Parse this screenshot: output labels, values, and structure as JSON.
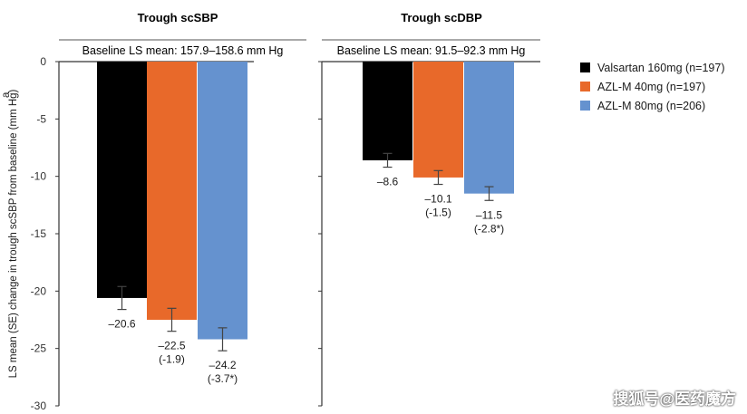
{
  "chart_data": {
    "type": "bar",
    "ylabel": "LS mean (SE) change in trough scSBP from baseline (mm Hg)",
    "ylabel_superscript": "a",
    "ylim": [
      -30,
      0
    ],
    "yticks": [
      0,
      -5,
      -10,
      -15,
      -20,
      -25,
      -30
    ],
    "ytick_labels": [
      "0",
      "-5",
      "-10",
      "-15",
      "-20",
      "-25",
      "-30"
    ],
    "legend_position": "right",
    "series": [
      {
        "name": "Valsartan 160mg (n=197)",
        "color": "#000000"
      },
      {
        "name": "AZL-M 40mg (n=197)",
        "color": "#E8692A"
      },
      {
        "name": "AZL-M 80mg (n=206)",
        "color": "#6592CF"
      }
    ],
    "panels": [
      {
        "title": "Trough scSBP",
        "baseline": "Baseline LS mean: 157.9–158.6 mm Hg",
        "values": [
          -20.6,
          -22.5,
          -24.2
        ],
        "se": [
          1.0,
          1.0,
          1.0
        ],
        "labels": [
          {
            "value": "–20.6",
            "diff": ""
          },
          {
            "value": "–22.5",
            "diff": "(-1.9)"
          },
          {
            "value": "–24.2",
            "diff": "(-3.7*)"
          }
        ]
      },
      {
        "title": "Trough scDBP",
        "baseline": "Baseline LS mean: 91.5–92.3 mm Hg",
        "values": [
          -8.6,
          -10.1,
          -11.5
        ],
        "se": [
          0.6,
          0.6,
          0.6
        ],
        "labels": [
          {
            "value": "–8.6",
            "diff": ""
          },
          {
            "value": "–10.1",
            "diff": "(-1.5)"
          },
          {
            "value": "–11.5",
            "diff": "(-2.8*)"
          }
        ]
      }
    ]
  },
  "watermark": "搜狐号@医药魔方"
}
